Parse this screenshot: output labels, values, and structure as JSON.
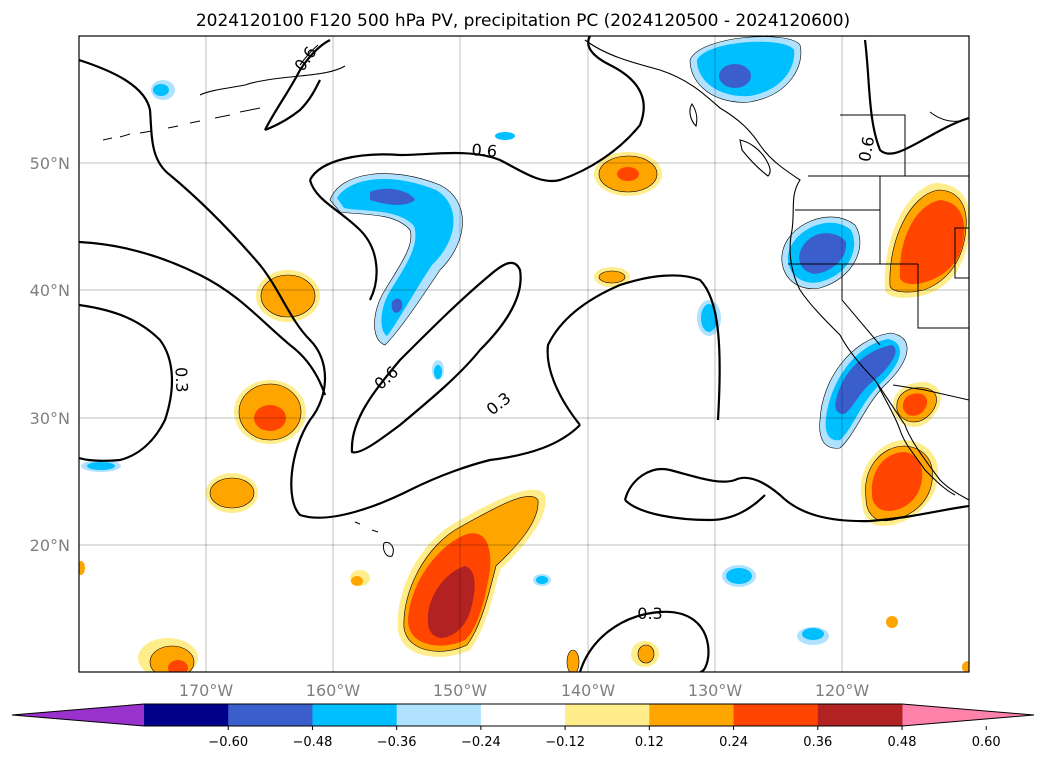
{
  "chart_data": {
    "type": "map",
    "title": "2024120100 F120 500 hPa PV, precipitation PC (2024120500 - 2024120600)",
    "projection": "PlateCarree",
    "extent": {
      "lon_min": -180,
      "lon_max": -110,
      "lat_min": 10,
      "lat_max": 60
    },
    "grid": true,
    "lat_ticks": [
      "20°N",
      "30°N",
      "40°N",
      "50°N"
    ],
    "lon_ticks": [
      "170°W",
      "160°W",
      "150°W",
      "140°W",
      "130°W",
      "120°W"
    ],
    "contour_labels": [
      "0.6",
      "0.6",
      "0.6",
      "0.6",
      "0.3",
      "0.3",
      "0.3"
    ],
    "colorbar": {
      "ticks": [
        "−0.60",
        "−0.48",
        "−0.36",
        "−0.24",
        "−0.12",
        "0.12",
        "0.24",
        "0.36",
        "0.48",
        "0.60"
      ],
      "levels": [
        -0.6,
        -0.48,
        -0.36,
        -0.24,
        -0.12,
        0.12,
        0.24,
        0.36,
        0.48,
        0.6
      ],
      "colors": [
        "#9932cc",
        "#00008b",
        "#3a5fcd",
        "#00bfff",
        "#b0e2ff",
        "#ffffff",
        "#ffec8b",
        "#ffa500",
        "#ff4500",
        "#b22222",
        "#ff82ab"
      ],
      "extend": "both"
    }
  }
}
